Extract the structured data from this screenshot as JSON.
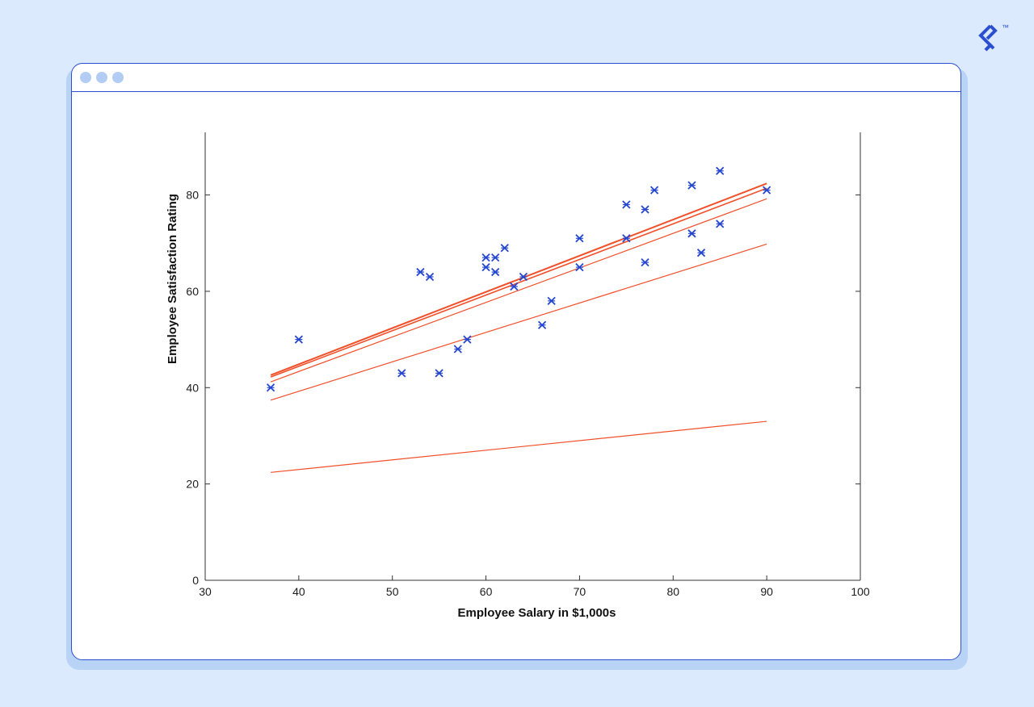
{
  "colors": {
    "background": "#dbeafc",
    "window_border": "#2b4fcf",
    "window_dots": "#b3ccf4",
    "marker": "#2547d0",
    "regression_line": "#f0502a",
    "logo": "#2b4fcf"
  },
  "logo": {
    "icon": "toptal-logo-icon",
    "mark": "™"
  },
  "window": {
    "titlebar_dots": 3
  },
  "chart_data": {
    "type": "scatter",
    "xlabel": "Employee Salary in $1,000s",
    "ylabel": "Employee Satisfaction Rating",
    "xlim": [
      30,
      100
    ],
    "ylim": [
      0,
      93
    ],
    "xticks": [
      30,
      40,
      50,
      60,
      70,
      80,
      90,
      100
    ],
    "yticks": [
      0,
      20,
      40,
      60,
      80
    ],
    "grid": false,
    "marker": "x",
    "points": [
      {
        "x": 37,
        "y": 40
      },
      {
        "x": 40,
        "y": 50
      },
      {
        "x": 51,
        "y": 43
      },
      {
        "x": 53,
        "y": 64
      },
      {
        "x": 54,
        "y": 63
      },
      {
        "x": 55,
        "y": 43
      },
      {
        "x": 57,
        "y": 48
      },
      {
        "x": 58,
        "y": 50
      },
      {
        "x": 60,
        "y": 67
      },
      {
        "x": 60,
        "y": 65
      },
      {
        "x": 61,
        "y": 67
      },
      {
        "x": 61,
        "y": 64
      },
      {
        "x": 62,
        "y": 69
      },
      {
        "x": 63,
        "y": 61
      },
      {
        "x": 64,
        "y": 63
      },
      {
        "x": 66,
        "y": 53
      },
      {
        "x": 67,
        "y": 58
      },
      {
        "x": 70,
        "y": 71
      },
      {
        "x": 70,
        "y": 65
      },
      {
        "x": 75,
        "y": 78
      },
      {
        "x": 75,
        "y": 71
      },
      {
        "x": 77,
        "y": 77
      },
      {
        "x": 77,
        "y": 66
      },
      {
        "x": 78,
        "y": 81
      },
      {
        "x": 82,
        "y": 82
      },
      {
        "x": 82,
        "y": 72
      },
      {
        "x": 83,
        "y": 68
      },
      {
        "x": 85,
        "y": 85
      },
      {
        "x": 85,
        "y": 74
      },
      {
        "x": 90,
        "y": 81
      }
    ],
    "lines": [
      {
        "x": [
          37,
          90
        ],
        "y": [
          22.4,
          33.0
        ],
        "width": 1.2
      },
      {
        "x": [
          37,
          90
        ],
        "y": [
          37.4,
          69.8
        ],
        "width": 1.2
      },
      {
        "x": [
          37,
          90
        ],
        "y": [
          41.2,
          79.2
        ],
        "width": 1.2
      },
      {
        "x": [
          37,
          90
        ],
        "y": [
          42.2,
          81.4
        ],
        "width": 1.6
      },
      {
        "x": [
          37,
          90
        ],
        "y": [
          42.6,
          82.4
        ],
        "width": 2.0
      }
    ]
  }
}
